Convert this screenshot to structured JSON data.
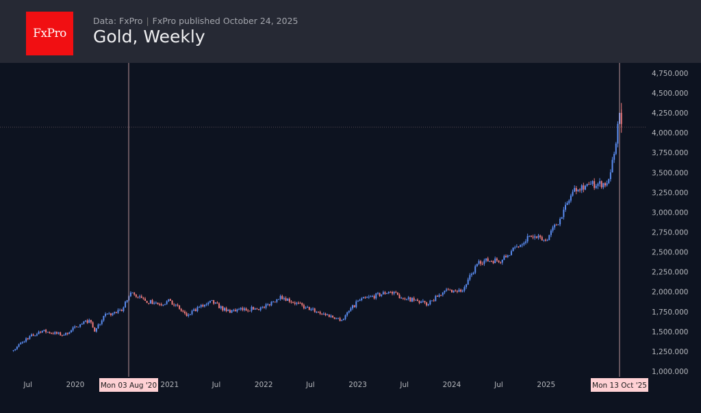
{
  "header": {
    "logo_text": "FxPro",
    "source": "Data: FxPro",
    "published": "FxPro published October 24, 2025",
    "title": "Gold, Weekly"
  },
  "colors": {
    "up": "#5b8df2",
    "down": "#ef7a7a",
    "crosshair": "#e8b4b8",
    "tag_bg": "#ffd1d4"
  },
  "chart_data": {
    "type": "candlestick",
    "title": "Gold, Weekly",
    "interval": "weekly",
    "x_start": "2019-05-06",
    "x_end": "2025-10-20",
    "ylim": [
      1000,
      4750
    ],
    "y_ticks": [
      "1,000.000",
      "1,250.000",
      "1,500.000",
      "1,750.000",
      "2,000.000",
      "2,250.000",
      "2,500.000",
      "2,750.000",
      "3,000.000",
      "3,250.000",
      "3,500.000",
      "3,750.000",
      "4,000.000",
      "4,250.000",
      "4,500.000",
      "4,750.000"
    ],
    "x_ticks": [
      {
        "label": "Jul",
        "date": "2019-07-01"
      },
      {
        "label": "2020",
        "date": "2020-01-01"
      },
      {
        "label": "2021",
        "date": "2021-01-01"
      },
      {
        "label": "Jul",
        "date": "2021-07-01"
      },
      {
        "label": "2022",
        "date": "2022-01-01"
      },
      {
        "label": "Jul",
        "date": "2022-07-01"
      },
      {
        "label": "2023",
        "date": "2023-01-01"
      },
      {
        "label": "Jul",
        "date": "2023-07-01"
      },
      {
        "label": "2024",
        "date": "2024-01-01"
      },
      {
        "label": "Jul",
        "date": "2024-07-01"
      },
      {
        "label": "2025",
        "date": "2025-01-01"
      }
    ],
    "weekly_close_path": [
      [
        "2019-05-06",
        1267
      ],
      [
        "2019-06-24",
        1413
      ],
      [
        "2019-08-26",
        1507
      ],
      [
        "2019-11-18",
        1456
      ],
      [
        "2020-01-06",
        1560
      ],
      [
        "2020-02-24",
        1645
      ],
      [
        "2020-03-16",
        1500
      ],
      [
        "2020-04-20",
        1697
      ],
      [
        "2020-06-29",
        1757
      ],
      [
        "2020-08-03",
        1989
      ],
      [
        "2020-09-28",
        1886
      ],
      [
        "2020-11-23",
        1843
      ],
      [
        "2021-01-04",
        1886
      ],
      [
        "2021-03-08",
        1697
      ],
      [
        "2021-06-07",
        1886
      ],
      [
        "2021-08-09",
        1757
      ],
      [
        "2022-01-03",
        1800
      ],
      [
        "2022-03-07",
        1946
      ],
      [
        "2022-06-13",
        1800
      ],
      [
        "2022-10-31",
        1645
      ],
      [
        "2023-01-02",
        1886
      ],
      [
        "2023-05-01",
        1998
      ],
      [
        "2023-07-10",
        1912
      ],
      [
        "2023-10-02",
        1843
      ],
      [
        "2023-12-04",
        2015
      ],
      [
        "2024-02-12",
        2015
      ],
      [
        "2024-04-15",
        2385
      ],
      [
        "2024-07-15",
        2402
      ],
      [
        "2024-10-28",
        2703
      ],
      [
        "2024-12-30",
        2643
      ],
      [
        "2025-02-24",
        2918
      ],
      [
        "2025-04-21",
        3305
      ],
      [
        "2025-06-16",
        3348
      ],
      [
        "2025-08-25",
        3365
      ],
      [
        "2025-09-22",
        3735
      ],
      [
        "2025-10-13",
        4250
      ],
      [
        "2025-10-20",
        4110
      ]
    ],
    "crosshair_vertical": [
      "Mon 03 Aug '20",
      "Mon 13 Oct '25"
    ],
    "grid": false
  }
}
